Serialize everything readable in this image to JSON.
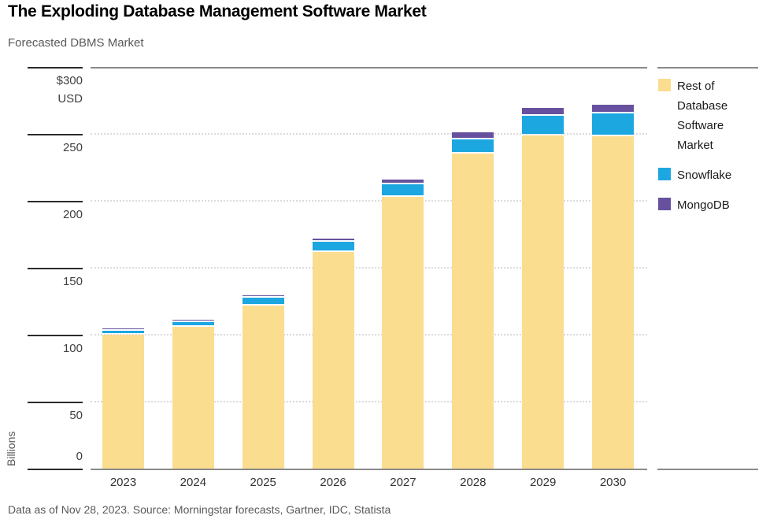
{
  "title": "The Exploding Database Management Software Market",
  "subtitle": "Forecasted DBMS Market",
  "footer": "Data as of Nov 28, 2023. Source: Morningstar forecasts, Gartner, IDC, Statista",
  "y_axis": {
    "unit_label": "Billions",
    "currency_sublabel": "USD",
    "ticks": [
      {
        "value": 300,
        "label": "$300",
        "sublabel": "USD"
      },
      {
        "value": 250,
        "label": "250"
      },
      {
        "value": 200,
        "label": "200"
      },
      {
        "value": 150,
        "label": "150"
      },
      {
        "value": 100,
        "label": "100"
      },
      {
        "value": 50,
        "label": "50"
      },
      {
        "value": 0,
        "label": "0"
      }
    ]
  },
  "legend": {
    "items": [
      {
        "label": "Rest of Database Software Market",
        "color": "#FBDD90"
      },
      {
        "label": "Snowflake",
        "color": "#1CA7E0"
      },
      {
        "label": "MongoDB",
        "color": "#67519F"
      }
    ]
  },
  "colors": {
    "rest_of_market": "#FBDD90",
    "snowflake": "#1CA7E0",
    "mongodb": "#67519F",
    "gridline": "#DBDBDB",
    "axis_line": "#8a8a8a",
    "tick_line": "#2b2b2b",
    "text_gray": "#58595B"
  },
  "chart_data": {
    "type": "bar",
    "stacked": true,
    "title": "Forecasted DBMS Market",
    "xlabel": "",
    "ylabel": "Billions (USD)",
    "ylim": [
      0,
      300
    ],
    "grid": "horizontal-dotted",
    "legend_position": "right",
    "categories": [
      "2023",
      "2024",
      "2025",
      "2026",
      "2027",
      "2028",
      "2029",
      "2030"
    ],
    "series": [
      {
        "name": "Rest of Database Software Market",
        "color": "#FBDD90",
        "values": [
          100,
          106,
          122,
          162,
          203,
          235,
          249,
          248
        ]
      },
      {
        "name": "Snowflake",
        "color": "#1CA7E0",
        "values": [
          3,
          3.5,
          5.5,
          7.5,
          9.5,
          11,
          14.5,
          17.5
        ]
      },
      {
        "name": "MongoDB",
        "color": "#67519F",
        "values": [
          1.5,
          1.5,
          2,
          2.5,
          3.5,
          5,
          6,
          6.5
        ]
      }
    ],
    "totals": [
      104.5,
      111,
      129.5,
      172,
      216,
      251,
      269.5,
      272
    ]
  }
}
